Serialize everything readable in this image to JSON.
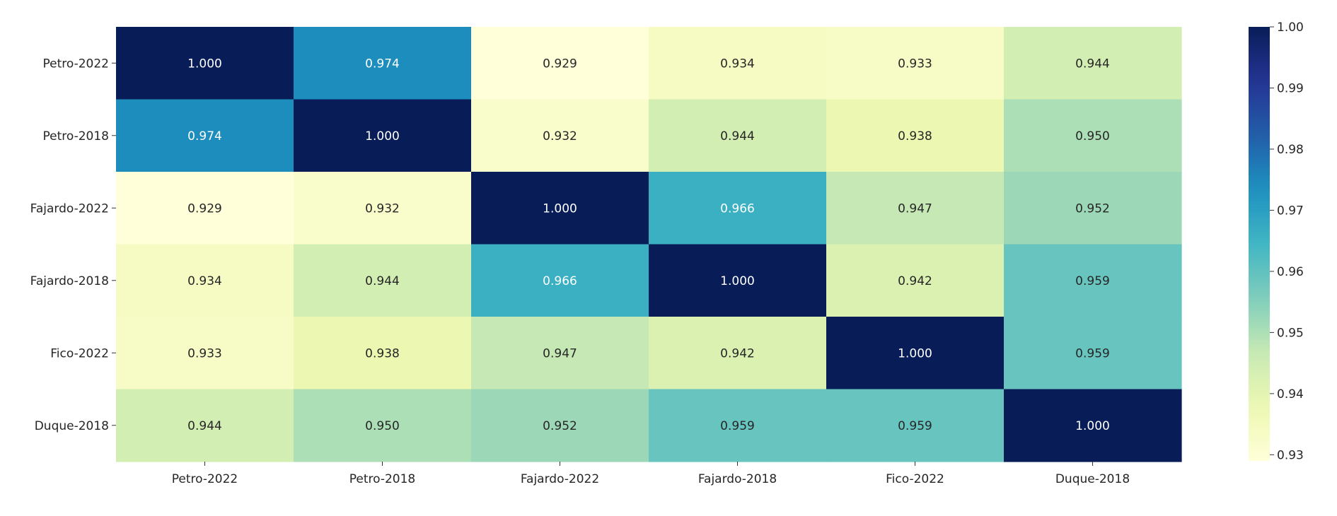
{
  "chart_data": {
    "type": "heatmap",
    "title": "",
    "xlabel": "",
    "ylabel": "",
    "x_labels": [
      "Petro-2022",
      "Petro-2018",
      "Fajardo-2022",
      "Fajardo-2018",
      "Fico-2022",
      "Duque-2018"
    ],
    "y_labels": [
      "Petro-2022",
      "Petro-2018",
      "Fajardo-2022",
      "Fajardo-2018",
      "Fico-2022",
      "Duque-2018"
    ],
    "values": [
      [
        1.0,
        0.974,
        0.929,
        0.934,
        0.933,
        0.944
      ],
      [
        0.974,
        1.0,
        0.932,
        0.944,
        0.938,
        0.95
      ],
      [
        0.929,
        0.932,
        1.0,
        0.966,
        0.947,
        0.952
      ],
      [
        0.934,
        0.944,
        0.966,
        1.0,
        0.942,
        0.959
      ],
      [
        0.933,
        0.938,
        0.947,
        0.942,
        1.0,
        0.959
      ],
      [
        0.944,
        0.95,
        0.952,
        0.959,
        0.959,
        1.0
      ]
    ],
    "cell_labels": [
      [
        "1.000",
        "0.974",
        "0.929",
        "0.934",
        "0.933",
        "0.944"
      ],
      [
        "0.974",
        "1.000",
        "0.932",
        "0.944",
        "0.938",
        "0.950"
      ],
      [
        "0.929",
        "0.932",
        "1.000",
        "0.966",
        "0.947",
        "0.952"
      ],
      [
        "0.934",
        "0.944",
        "0.966",
        "1.000",
        "0.942",
        "0.959"
      ],
      [
        "0.933",
        "0.938",
        "0.947",
        "0.942",
        "1.000",
        "0.959"
      ],
      [
        "0.944",
        "0.950",
        "0.952",
        "0.959",
        "0.959",
        "1.000"
      ]
    ],
    "colormap": "YlGnBu",
    "vmin": 0.929,
    "vmax": 1.0,
    "colorbar": {
      "ticks": [
        0.93,
        0.94,
        0.95,
        0.96,
        0.97,
        0.98,
        0.99,
        1.0
      ],
      "tick_labels": [
        "0.93",
        "0.94",
        "0.95",
        "0.96",
        "0.97",
        "0.98",
        "0.99",
        "1.00"
      ]
    },
    "grid": false
  }
}
